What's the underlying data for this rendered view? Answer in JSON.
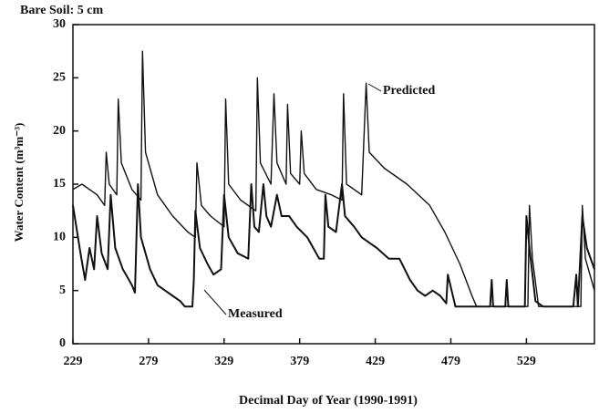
{
  "chart_data": {
    "type": "line",
    "title": "Bare Soil: 5 cm",
    "x_label": "Decimal Day of Year (1990-1991)",
    "y_label": "Water Content (m³m⁻³)",
    "xlim": [
      229,
      574
    ],
    "ylim": [
      0,
      30
    ],
    "xticks": [
      229,
      279,
      329,
      379,
      429,
      479,
      529
    ],
    "yticks": [
      0,
      5,
      10,
      15,
      20,
      25,
      30
    ],
    "annotations": [
      "Predicted",
      "Measured"
    ],
    "series": [
      {
        "name": "Predicted",
        "color": "#111111",
        "x": [
          229,
          235,
          245,
          250,
          251,
          253,
          258,
          259,
          261,
          268,
          274,
          275,
          277,
          285,
          295,
          305,
          310,
          311,
          314,
          320,
          329,
          330,
          332,
          340,
          350,
          351,
          353,
          360,
          362,
          364,
          370,
          371,
          373,
          379,
          380,
          382,
          390,
          400,
          407,
          408,
          410,
          420,
          423,
          425,
          435,
          450,
          465,
          475,
          485,
          493,
          496,
          530,
          531,
          533,
          537,
          565,
          566,
          568,
          572,
          574
        ],
        "values": [
          14.5,
          15,
          14,
          13,
          18,
          15,
          14,
          23,
          17,
          14.5,
          13.5,
          27.5,
          18,
          14,
          12,
          10.5,
          10,
          17,
          13,
          12,
          11,
          23,
          15,
          13.5,
          12.5,
          25,
          17,
          15,
          23.5,
          17,
          15,
          22.5,
          16,
          15,
          20,
          16,
          14.5,
          14,
          13.5,
          23.5,
          15,
          14,
          24.5,
          18,
          16.5,
          15,
          13,
          10.5,
          7.5,
          4.5,
          3.5,
          3.5,
          13,
          8,
          3.5,
          3.5,
          13,
          8,
          6,
          5
        ]
      },
      {
        "name": "Measured",
        "color": "#111111",
        "x": [
          229,
          234,
          237,
          240,
          243,
          245,
          248,
          252,
          254,
          257,
          262,
          268,
          270,
          272,
          274,
          280,
          285,
          290,
          295,
          300,
          303,
          308,
          309,
          310,
          313,
          318,
          322,
          327,
          329,
          332,
          338,
          345,
          347,
          349,
          352,
          355,
          357,
          360,
          364,
          367,
          372,
          377,
          384,
          392,
          395,
          396,
          398,
          403,
          407,
          409,
          415,
          420,
          425,
          430,
          438,
          445,
          452,
          457,
          462,
          467,
          472,
          476,
          477,
          482,
          500,
          505,
          506,
          507,
          515,
          516,
          517,
          528,
          529,
          531,
          535,
          540,
          560,
          562,
          563,
          566,
          569,
          574
        ],
        "values": [
          13,
          8.5,
          6,
          9,
          7,
          12,
          8.5,
          7,
          14,
          9,
          7,
          5.5,
          4.8,
          15,
          10,
          7,
          5.5,
          5,
          4.5,
          4,
          3.5,
          3.5,
          6,
          12.5,
          9,
          7.5,
          6.5,
          7,
          14,
          10,
          8.5,
          8,
          15,
          11,
          10.5,
          15,
          12,
          11,
          14,
          12,
          12,
          11,
          10,
          8,
          8,
          14,
          11,
          10.5,
          15,
          12,
          11,
          10,
          9.5,
          9,
          8,
          8,
          6,
          5,
          4.5,
          5,
          4.5,
          3.8,
          6.5,
          3.5,
          3.5,
          3.5,
          6,
          3.5,
          3.5,
          6,
          3.5,
          3.5,
          12,
          9,
          4,
          3.5,
          3.5,
          6.5,
          3.5,
          12,
          9,
          7
        ]
      }
    ]
  }
}
